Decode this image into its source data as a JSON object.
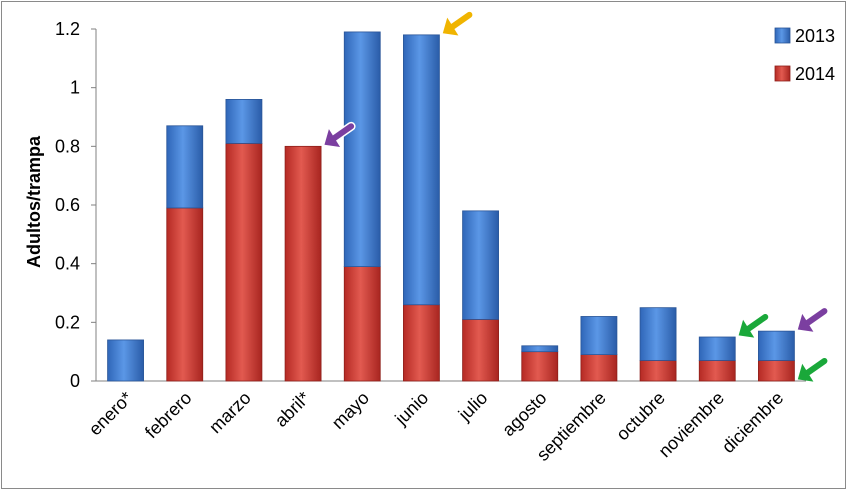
{
  "chart_data": {
    "type": "bar",
    "stacked": true,
    "categories": [
      "enero*",
      "febrero",
      "marzo",
      "abril*",
      "mayo",
      "junio",
      "julio",
      "agosto",
      "septiembre",
      "octubre",
      "noviembre",
      "diciembre"
    ],
    "series": [
      {
        "name": "2014",
        "color": "#c0392b",
        "values": [
          0,
          0.59,
          0.81,
          0.8,
          0.39,
          0.26,
          0.21,
          0.1,
          0.09,
          0.07,
          0.07,
          0.07
        ]
      },
      {
        "name": "2013",
        "color": "#3a7bd5",
        "values": [
          0.14,
          0.28,
          0.15,
          0,
          0.8,
          0.92,
          0.37,
          0.02,
          0.13,
          0.18,
          0.08,
          0.1
        ]
      }
    ],
    "title": "",
    "xlabel": "",
    "ylabel": "Adultos/trampa",
    "ylim": [
      0,
      1.2
    ],
    "yticks": [
      "0",
      "0.2",
      "0.4",
      "0.6",
      "0.8",
      "1",
      "1.2"
    ],
    "grid": false,
    "legend": "top-right",
    "annotations": [
      {
        "type": "arrow",
        "color": "#f0b400",
        "category": "junio",
        "at_value": 1.18
      },
      {
        "type": "arrow",
        "color": "#7b3fa0",
        "category": "abril*",
        "at_value": 0.8
      },
      {
        "type": "arrow",
        "color": "#1aa83a",
        "category": "noviembre",
        "at_value": 0.15
      },
      {
        "type": "arrow",
        "color": "#7b3fa0",
        "category": "diciembre",
        "at_value": 0.17
      },
      {
        "type": "arrow",
        "color": "#1aa83a",
        "category": "diciembre",
        "at_value": 0.0
      }
    ]
  }
}
